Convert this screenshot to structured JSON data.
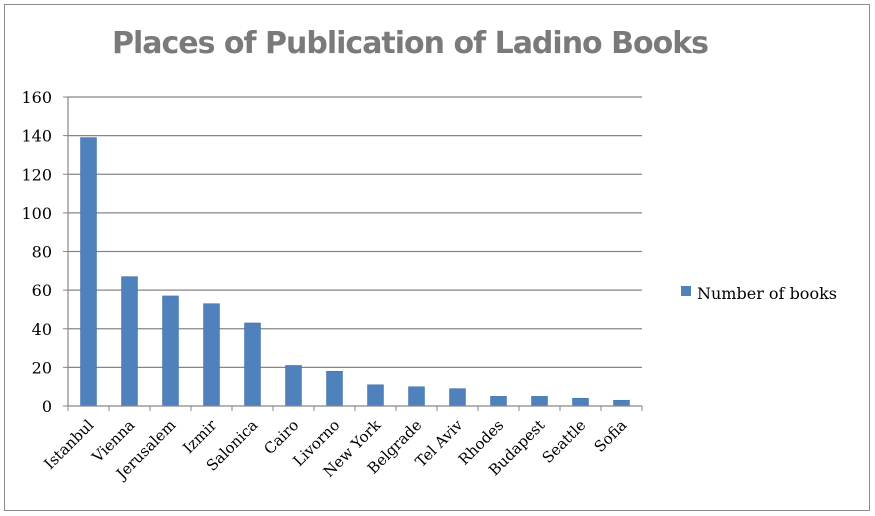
{
  "chart_data": {
    "type": "bar",
    "title": "Places of Publication of Ladino Books",
    "xlabel": "",
    "ylabel": "",
    "categories": [
      "Istanbul",
      "Vienna",
      "Jerusalem",
      "Izmir",
      "Salonica",
      "Cairo",
      "Livorno",
      "New York",
      "Belgrade",
      "Tel Aviv",
      "Rhodes",
      "Budapest",
      "Seattle",
      "Sofia"
    ],
    "series": [
      {
        "name": "Number of books",
        "color": "#4f81bd",
        "values": [
          139,
          67,
          57,
          53,
          43,
          21,
          18,
          11,
          10,
          9,
          5,
          5,
          4,
          3
        ]
      }
    ],
    "ylim": [
      0,
      160
    ],
    "yticks": [
      "0",
      "20",
      "40",
      "60",
      "80",
      "100",
      "120",
      "140",
      "160"
    ],
    "grid": true,
    "legend": "right"
  }
}
